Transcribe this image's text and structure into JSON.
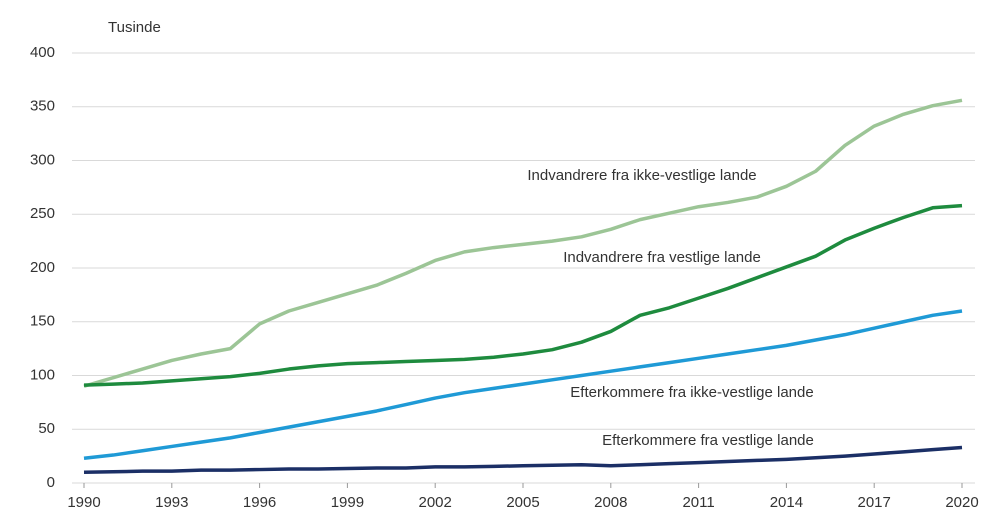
{
  "chart_data": {
    "type": "line",
    "y_label": "Tusinde",
    "x": [
      1990,
      1991,
      1992,
      1993,
      1994,
      1995,
      1996,
      1997,
      1998,
      1999,
      2000,
      2001,
      2002,
      2003,
      2004,
      2005,
      2006,
      2007,
      2008,
      2009,
      2010,
      2011,
      2012,
      2013,
      2014,
      2015,
      2016,
      2017,
      2018,
      2019,
      2020
    ],
    "xlim": [
      1990,
      2020
    ],
    "xticks": [
      1990,
      1993,
      1996,
      1999,
      2002,
      2005,
      2008,
      2011,
      2014,
      2017,
      2020
    ],
    "ylim": [
      0,
      400
    ],
    "yticks": [
      0,
      50,
      100,
      150,
      200,
      250,
      300,
      350,
      400
    ],
    "grid": true,
    "series": [
      {
        "name": "Indvandrere fra ikke-vestlige lande",
        "color": "#9cc596",
        "values": [
          90,
          98,
          106,
          114,
          120,
          125,
          148,
          160,
          168,
          176,
          184,
          195,
          207,
          215,
          219,
          222,
          225,
          229,
          236,
          245,
          251,
          257,
          261,
          266,
          276,
          290,
          314,
          332,
          343,
          351,
          356
        ]
      },
      {
        "name": "Indvandrere fra vestlige lande",
        "color": "#1e8b3e",
        "values": [
          91,
          92,
          93,
          95,
          97,
          99,
          102,
          106,
          109,
          111,
          112,
          113,
          114,
          115,
          117,
          120,
          124,
          131,
          141,
          156,
          163,
          172,
          181,
          191,
          201,
          211,
          226,
          237,
          247,
          256,
          258
        ]
      },
      {
        "name": "Efterkommere fra ikke-vestlige lande",
        "color": "#1f9ad6",
        "values": [
          23,
          26,
          30,
          34,
          38,
          42,
          47,
          52,
          57,
          62,
          67,
          73,
          79,
          84,
          88,
          92,
          96,
          100,
          104,
          108,
          112,
          116,
          120,
          124,
          128,
          133,
          138,
          144,
          150,
          156,
          160
        ]
      },
      {
        "name": "Efterkommere fra vestlige lande",
        "color": "#1b2f66",
        "values": [
          10,
          10.5,
          11,
          11,
          12,
          12,
          12.5,
          13,
          13,
          13.5,
          14,
          14,
          15,
          15,
          15.5,
          16,
          16.5,
          17,
          16,
          17,
          18,
          19,
          20,
          21,
          22,
          23.5,
          25,
          27,
          29,
          31,
          33
        ]
      }
    ]
  }
}
